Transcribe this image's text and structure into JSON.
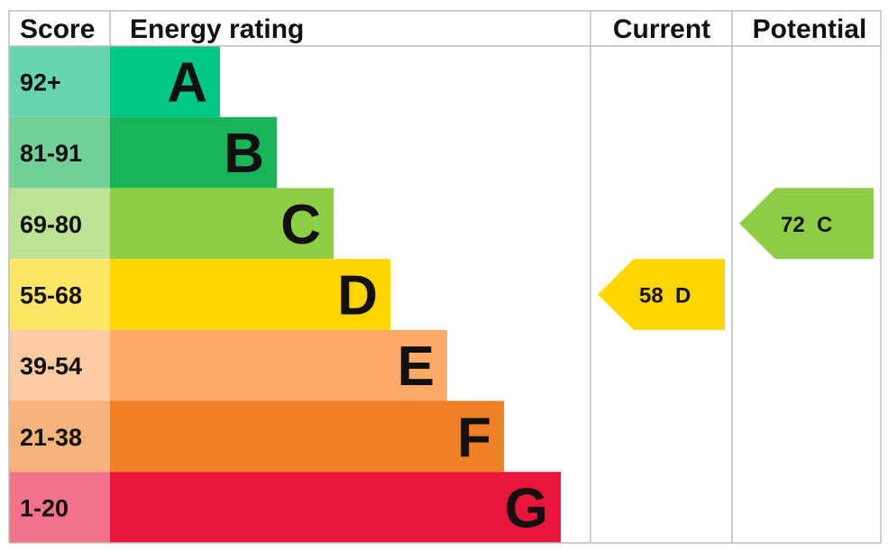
{
  "chart_data": {
    "type": "bar",
    "headers": {
      "score": "Score",
      "energy_rating": "Energy rating",
      "current": "Current",
      "potential": "Potential"
    },
    "bands": [
      {
        "letter": "A",
        "range": "92+",
        "min": 92,
        "max": 100,
        "color": "#00c781",
        "score_bg": "#66d6ae"
      },
      {
        "letter": "B",
        "range": "81-91",
        "min": 81,
        "max": 91,
        "color": "#19b459",
        "score_bg": "#73cf98"
      },
      {
        "letter": "C",
        "range": "69-80",
        "min": 69,
        "max": 80,
        "color": "#8dce46",
        "score_bg": "#bde294"
      },
      {
        "letter": "D",
        "range": "55-68",
        "min": 55,
        "max": 68,
        "color": "#ffd500",
        "score_bg": "#ffe566"
      },
      {
        "letter": "E",
        "range": "39-54",
        "min": 39,
        "max": 54,
        "color": "#fcaa65",
        "score_bg": "#fdcba2"
      },
      {
        "letter": "F",
        "range": "21-38",
        "min": 21,
        "max": 38,
        "color": "#ef8023",
        "score_bg": "#f5b37c"
      },
      {
        "letter": "G",
        "range": "1-20",
        "min": 1,
        "max": 20,
        "color": "#e9153b",
        "score_bg": "#f27389"
      }
    ],
    "current": {
      "value": 58,
      "letter": "D",
      "label": "58  D"
    },
    "potential": {
      "value": 72,
      "letter": "C",
      "label": "72  C"
    }
  }
}
